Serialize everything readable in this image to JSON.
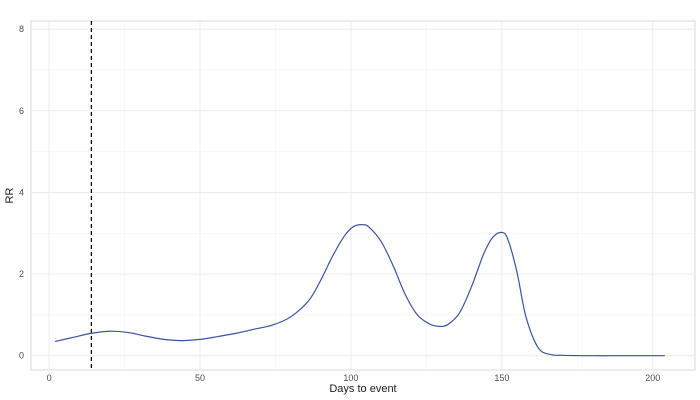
{
  "chart_data": {
    "type": "line",
    "title": "",
    "xlabel": "Days to event",
    "ylabel": "RR",
    "xlim": [
      -6,
      214
    ],
    "ylim": [
      -0.35,
      8.2
    ],
    "x_ticks": [
      0,
      50,
      100,
      150,
      200
    ],
    "y_ticks": [
      0,
      2,
      4,
      6,
      8
    ],
    "grid": true,
    "legend": "none",
    "reference_line": {
      "x": 14,
      "style": "dashed",
      "color": "#000000"
    },
    "series": [
      {
        "color": "#3953a4",
        "x": [
          2,
          8,
          14,
          20,
          26,
          32,
          38,
          44,
          50,
          56,
          62,
          68,
          74,
          80,
          86,
          90,
          94,
          98,
          101,
          104,
          106,
          110,
          114,
          118,
          122,
          126,
          129,
          132,
          136,
          140,
          144,
          147,
          150,
          152,
          155,
          158,
          162,
          166,
          170,
          180,
          190,
          204
        ],
        "y": [
          0.35,
          0.45,
          0.55,
          0.6,
          0.57,
          0.48,
          0.4,
          0.37,
          0.4,
          0.47,
          0.55,
          0.65,
          0.75,
          0.95,
          1.35,
          1.85,
          2.45,
          2.95,
          3.17,
          3.21,
          3.15,
          2.8,
          2.2,
          1.5,
          1.0,
          0.78,
          0.72,
          0.76,
          1.05,
          1.7,
          2.5,
          2.9,
          3.02,
          2.85,
          2.05,
          0.95,
          0.2,
          0.03,
          0.01,
          0.0,
          0.0,
          0.0
        ]
      }
    ]
  }
}
